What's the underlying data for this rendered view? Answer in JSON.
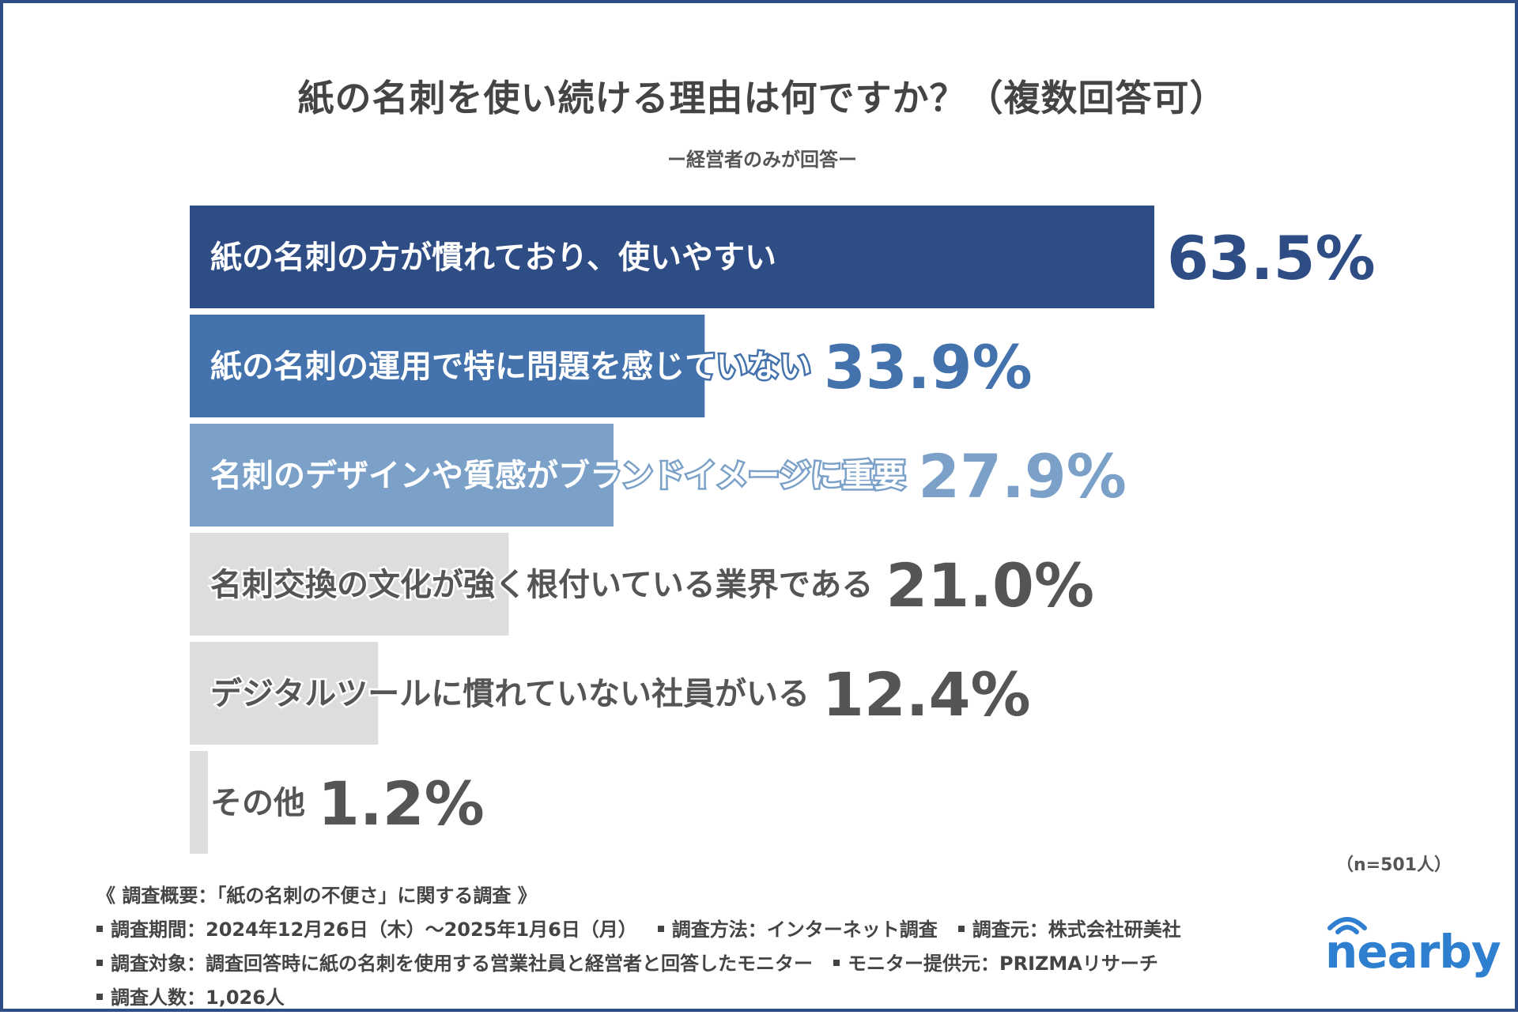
{
  "title": "紙の名刺を使い続ける理由は何ですか？（複数回答可）",
  "subtitle": "ー経営者のみが回答ー",
  "chart_data": {
    "type": "bar",
    "orientation": "horizontal",
    "title": "紙の名刺を使い続ける理由は何ですか？（複数回答可）",
    "subtitle": "ー経営者のみが回答ー",
    "unit": "%",
    "categories": [
      "紙の名刺の方が慣れており、使いやすい",
      "紙の名刺の運用で特に問題を感じていない",
      "名刺のデザインや質感がブランドイメージに重要",
      "名刺交換の文化が強く根付いている業界である",
      "デジタルツールに慣れていない社員がいる",
      "その他"
    ],
    "values": [
      63.5,
      33.9,
      27.9,
      21.0,
      12.4,
      1.2
    ],
    "value_labels": [
      "63.5%",
      "33.9%",
      "27.9%",
      "21.0%",
      "12.4%",
      "1.2%"
    ],
    "bar_colors": [
      "#2f4d85",
      "#4472ad",
      "#7ba1c9",
      "#dddddd",
      "#dddddd",
      "#dddddd"
    ],
    "label_colors": [
      "#ffffff",
      "#ffffff",
      "#ffffff",
      "#555555",
      "#555555",
      "#555555"
    ],
    "value_colors": [
      "#2f4d85",
      "#4472ad",
      "#7ba1c9",
      "#555555",
      "#555555",
      "#555555"
    ],
    "xlim": [
      0,
      100
    ],
    "grid": false,
    "legend": "none"
  },
  "sample_note": "（n=501人）",
  "survey": {
    "heading": "《 調査概要：「紙の名刺の不便さ」に関する調査 》",
    "period": "調査期間：2024年12月26日（木）～2025年1月6日（月）",
    "method": "調査方法：インターネット調査",
    "source": "調査元：株式会社研美社",
    "target": "調査対象：調査回答時に紙の名刺を使用する営業社員と経営者と回答したモニター",
    "provider": "モニター提供元：PRIZMAリサーチ",
    "count": "調査人数：1,026人"
  },
  "brand": {
    "name": "nearby",
    "color": "#2e7fd0"
  }
}
